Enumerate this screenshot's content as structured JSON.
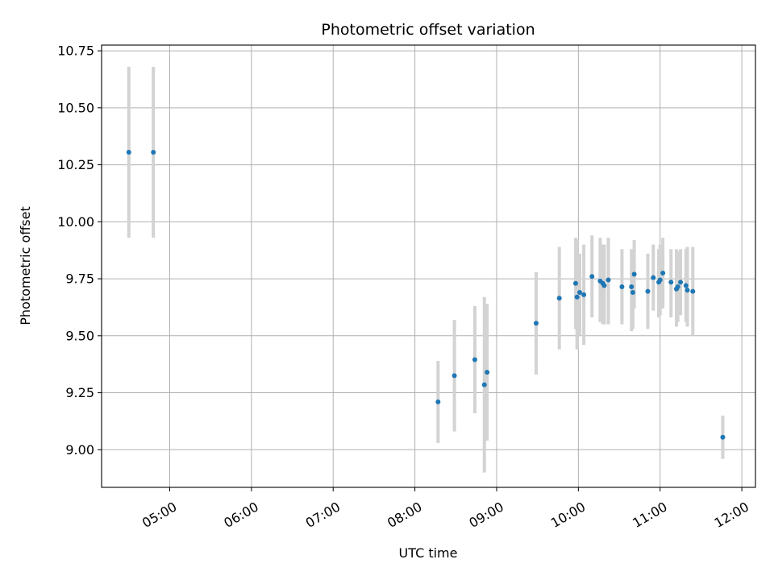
{
  "chart_data": {
    "type": "scatter",
    "title": "Photometric offset variation",
    "xlabel": "UTC time",
    "ylabel": "Photometric offset",
    "grid": true,
    "xlim": [
      "04:10",
      "12:10"
    ],
    "ylim": [
      8.835,
      10.775
    ],
    "x_ticks": [
      "05:00",
      "06:00",
      "07:00",
      "08:00",
      "09:00",
      "10:00",
      "11:00",
      "12:00"
    ],
    "y_ticks": [
      "9.00",
      "9.25",
      "9.50",
      "9.75",
      "10.00",
      "10.25",
      "10.50",
      "10.75"
    ],
    "colors": {
      "points": "#1f77b4",
      "error_bars": "#d3d3d3",
      "grid": "#b0b0b0"
    },
    "points": [
      {
        "x": "04:30",
        "y": 10.305,
        "y_low": 9.93,
        "y_high": 10.68
      },
      {
        "x": "04:48",
        "y": 10.305,
        "y_low": 9.93,
        "y_high": 10.68
      },
      {
        "x": "08:17",
        "y": 9.21,
        "y_low": 9.03,
        "y_high": 9.39
      },
      {
        "x": "08:29",
        "y": 9.325,
        "y_low": 9.08,
        "y_high": 9.57
      },
      {
        "x": "08:44",
        "y": 9.395,
        "y_low": 9.16,
        "y_high": 9.63
      },
      {
        "x": "08:51",
        "y": 9.285,
        "y_low": 8.9,
        "y_high": 9.67
      },
      {
        "x": "08:53",
        "y": 9.34,
        "y_low": 9.04,
        "y_high": 9.64
      },
      {
        "x": "09:29",
        "y": 9.555,
        "y_low": 9.33,
        "y_high": 9.78
      },
      {
        "x": "09:46",
        "y": 9.665,
        "y_low": 9.44,
        "y_high": 9.89
      },
      {
        "x": "09:58",
        "y": 9.73,
        "y_low": 9.53,
        "y_high": 9.93
      },
      {
        "x": "09:59",
        "y": 9.67,
        "y_low": 9.44,
        "y_high": 9.92
      },
      {
        "x": "10:01",
        "y": 9.69,
        "y_low": 9.5,
        "y_high": 9.86
      },
      {
        "x": "10:04",
        "y": 9.68,
        "y_low": 9.46,
        "y_high": 9.9
      },
      {
        "x": "10:10",
        "y": 9.76,
        "y_low": 9.58,
        "y_high": 9.94
      },
      {
        "x": "10:16",
        "y": 9.74,
        "y_low": 9.56,
        "y_high": 9.93
      },
      {
        "x": "10:18",
        "y": 9.73,
        "y_low": 9.55,
        "y_high": 9.9
      },
      {
        "x": "10:19",
        "y": 9.72,
        "y_low": 9.55,
        "y_high": 9.9
      },
      {
        "x": "10:22",
        "y": 9.745,
        "y_low": 9.55,
        "y_high": 9.93
      },
      {
        "x": "10:32",
        "y": 9.715,
        "y_low": 9.55,
        "y_high": 9.88
      },
      {
        "x": "10:39",
        "y": 9.715,
        "y_low": 9.52,
        "y_high": 9.88
      },
      {
        "x": "10:40",
        "y": 9.69,
        "y_low": 9.53,
        "y_high": 9.86
      },
      {
        "x": "10:41",
        "y": 9.77,
        "y_low": 9.62,
        "y_high": 9.92
      },
      {
        "x": "10:51",
        "y": 9.695,
        "y_low": 9.53,
        "y_high": 9.86
      },
      {
        "x": "10:55",
        "y": 9.755,
        "y_low": 9.61,
        "y_high": 9.9
      },
      {
        "x": "10:59",
        "y": 9.735,
        "y_low": 9.58,
        "y_high": 9.88
      },
      {
        "x": "11:00",
        "y": 9.745,
        "y_low": 9.59,
        "y_high": 9.9
      },
      {
        "x": "11:02",
        "y": 9.775,
        "y_low": 9.62,
        "y_high": 9.93
      },
      {
        "x": "11:08",
        "y": 9.735,
        "y_low": 9.58,
        "y_high": 9.88
      },
      {
        "x": "11:12",
        "y": 9.705,
        "y_low": 9.54,
        "y_high": 9.88
      },
      {
        "x": "11:13",
        "y": 9.715,
        "y_low": 9.56,
        "y_high": 9.87
      },
      {
        "x": "11:15",
        "y": 9.735,
        "y_low": 9.59,
        "y_high": 9.88
      },
      {
        "x": "11:19",
        "y": 9.72,
        "y_low": 9.56,
        "y_high": 9.88
      },
      {
        "x": "11:20",
        "y": 9.7,
        "y_low": 9.54,
        "y_high": 9.89
      },
      {
        "x": "11:24",
        "y": 9.695,
        "y_low": 9.5,
        "y_high": 9.89
      },
      {
        "x": "11:46",
        "y": 9.055,
        "y_low": 8.96,
        "y_high": 9.15
      }
    ]
  }
}
